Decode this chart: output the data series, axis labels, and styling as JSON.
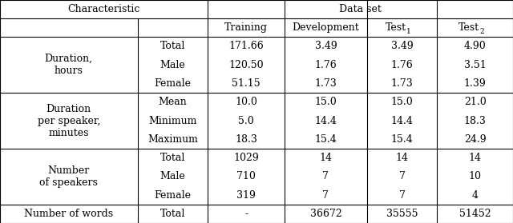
{
  "group_spans": [
    {
      "label": "Duration,\nhours",
      "rows": [
        0,
        1,
        2
      ]
    },
    {
      "label": "Duration\nper speaker,\nminutes",
      "rows": [
        3,
        4,
        5
      ]
    },
    {
      "label": "Number\nof speakers",
      "rows": [
        6,
        7,
        8
      ]
    },
    {
      "label": "Number of words",
      "rows": [
        9
      ]
    }
  ],
  "sub_labels": [
    "Total",
    "Male",
    "Female",
    "Mean",
    "Minimum",
    "Maximum",
    "Total",
    "Male",
    "Female",
    "Total"
  ],
  "data_vals": [
    [
      "171.66",
      "3.49",
      "3.49",
      "4.90"
    ],
    [
      "120.50",
      "1.76",
      "1.76",
      "3.51"
    ],
    [
      "51.15",
      "1.73",
      "1.73",
      "1.39"
    ],
    [
      "10.0",
      "15.0",
      "15.0",
      "21.0"
    ],
    [
      "5.0",
      "14.4",
      "14.4",
      "18.3"
    ],
    [
      "18.3",
      "15.4",
      "15.4",
      "24.9"
    ],
    [
      "1029",
      "14",
      "14",
      "14"
    ],
    [
      "710",
      "7",
      "7",
      "10"
    ],
    [
      "319",
      "7",
      "7",
      "4"
    ],
    [
      "-",
      "36672",
      "35555",
      "51452"
    ]
  ],
  "col_bounds": [
    0.0,
    0.268,
    0.405,
    0.555,
    0.715,
    0.852,
    1.0
  ],
  "bg_color": "#ffffff",
  "text_color": "#000000",
  "font_size": 9.0,
  "lw": 0.8
}
